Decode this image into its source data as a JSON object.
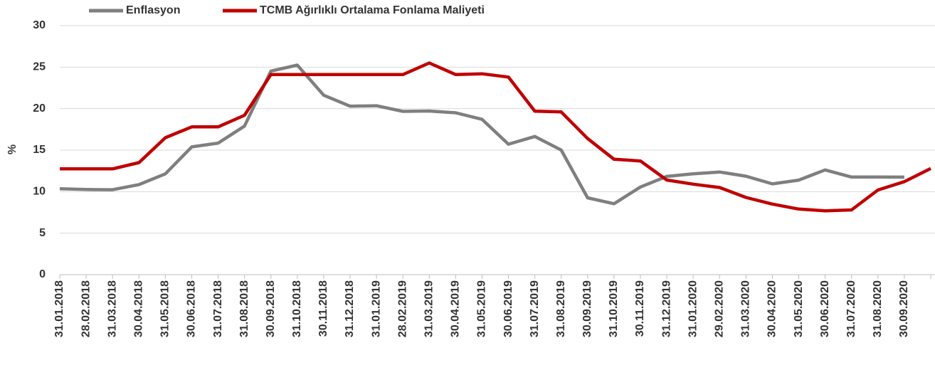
{
  "chart_data": {
    "type": "line",
    "ylabel": "%",
    "categories": [
      "31.01.2018",
      "28.02.2018",
      "31.03.2018",
      "30.04.2018",
      "31.05.2018",
      "30.06.2018",
      "31.07.2018",
      "31.08.2018",
      "30.09.2018",
      "31.10.2018",
      "30.11.2018",
      "31.12.2018",
      "31.01.2019",
      "28.02.2019",
      "31.03.2019",
      "30.04.2019",
      "31.05.2019",
      "30.06.2019",
      "31.07.2019",
      "31.08.2019",
      "30.09.2019",
      "31.10.2019",
      "30.11.2019",
      "31.12.2019",
      "31.01.2020",
      "29.02.2020",
      "31.03.2020",
      "30.04.2020",
      "31.05.2020",
      "30.06.2020",
      "31.07.2020",
      "31.08.2020",
      "30.09.2020",
      null
    ],
    "series": [
      {
        "name": "Enflasyon",
        "color": "#7f7f7f",
        "values": [
          10.35,
          10.26,
          10.23,
          10.85,
          12.15,
          15.39,
          15.85,
          17.9,
          24.52,
          25.24,
          21.62,
          20.3,
          20.35,
          19.67,
          19.71,
          19.5,
          18.71,
          15.72,
          16.65,
          15.01,
          9.26,
          8.55,
          10.56,
          11.84,
          12.15,
          12.37,
          11.86,
          10.94,
          11.39,
          12.62,
          11.76,
          11.77,
          11.75,
          null
        ]
      },
      {
        "name": "TCMB Ağırlıklı Ortalama Fonlama Maliyeti",
        "color": "#c00000",
        "values": [
          12.75,
          12.75,
          12.75,
          13.5,
          16.5,
          17.8,
          17.8,
          19.2,
          24.1,
          24.1,
          24.1,
          24.1,
          24.1,
          24.1,
          25.5,
          24.1,
          24.2,
          23.8,
          19.7,
          19.6,
          16.4,
          13.9,
          13.7,
          11.4,
          10.9,
          10.5,
          9.3,
          8.5,
          7.9,
          7.7,
          7.8,
          10.2,
          11.2,
          12.8
        ]
      }
    ],
    "ylim": [
      0,
      30
    ],
    "yticks": [
      0,
      5,
      10,
      15,
      20,
      25,
      30
    ],
    "grid": true
  }
}
